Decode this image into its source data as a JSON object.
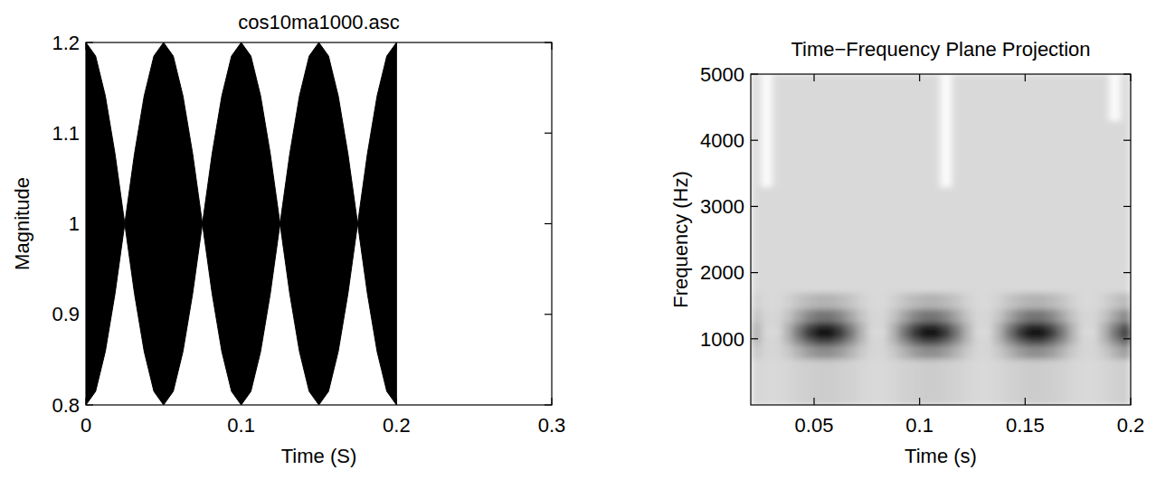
{
  "chart_data": [
    {
      "type": "area",
      "title": "cos10ma1000.asc",
      "x_label": "Time (S)",
      "y_label": "Magnitude",
      "x": [
        0,
        0.00625,
        0.0125,
        0.01875,
        0.025,
        0.03125,
        0.0375,
        0.04375,
        0.05,
        0.05625,
        0.0625,
        0.06875,
        0.075,
        0.08125,
        0.0875,
        0.09375,
        0.1,
        0.10625,
        0.1125,
        0.11875,
        0.125,
        0.13125,
        0.1375,
        0.14375,
        0.15,
        0.15625,
        0.1625,
        0.16875,
        0.175,
        0.18125,
        0.1875,
        0.19375,
        0.2
      ],
      "series": [
        {
          "color": "#000000",
          "values": [
            1.2,
            1.185,
            1.141,
            1.077,
            1,
            1.077,
            1.141,
            1.185,
            1.2,
            1.185,
            1.141,
            1.077,
            1,
            1.077,
            1.141,
            1.185,
            1.2,
            1.185,
            1.141,
            1.077,
            1,
            1.077,
            1.141,
            1.185,
            1.2,
            1.185,
            1.141,
            1.077,
            1,
            1.077,
            1.141,
            1.185,
            1.2
          ]
        },
        {
          "color": "#000000",
          "values": [
            0.8,
            0.815,
            0.859,
            0.923,
            1,
            0.923,
            0.859,
            0.815,
            0.8,
            0.815,
            0.859,
            0.923,
            1,
            0.923,
            0.859,
            0.815,
            0.8,
            0.815,
            0.859,
            0.923,
            1,
            0.923,
            0.859,
            0.815,
            0.8,
            0.815,
            0.859,
            0.923,
            1,
            0.923,
            0.859,
            0.815,
            0.8
          ]
        }
      ],
      "xlim": [
        0,
        0.3
      ],
      "xticks": [
        0,
        0.1,
        0.2,
        0.3
      ],
      "ylim": [
        0.8,
        1.2
      ],
      "yticks": [
        0.8,
        0.9,
        1,
        1.1,
        1.2
      ]
    },
    {
      "type": "heatmap",
      "title": "Time−Frequency Plane Projection",
      "x_label": "Time (s)",
      "y_label": "Frequency (Hz)",
      "x_edges": [
        0.02,
        0.025,
        0.03,
        0.035,
        0.04,
        0.045,
        0.05,
        0.055,
        0.06,
        0.065,
        0.07,
        0.075,
        0.08,
        0.085,
        0.09,
        0.095,
        0.1,
        0.105,
        0.11,
        0.115,
        0.12,
        0.125,
        0.13,
        0.135,
        0.14,
        0.145,
        0.15,
        0.155,
        0.16,
        0.165,
        0.17,
        0.175,
        0.18,
        0.185,
        0.19,
        0.195,
        0.2
      ],
      "y_edges": [
        0,
        700,
        900,
        1000,
        1050,
        1150,
        1250,
        1450,
        1700,
        3300,
        4300,
        5000
      ],
      "cells": [
        [
          0.16,
          0.15,
          0.15,
          0.16,
          0.18,
          0.19,
          0.2,
          0.2,
          0.19,
          0.18,
          0.16,
          0.15,
          0.15,
          0.16,
          0.18,
          0.19,
          0.2,
          0.2,
          0.19,
          0.18,
          0.16,
          0.15,
          0.15,
          0.16,
          0.18,
          0.19,
          0.2,
          0.2,
          0.19,
          0.18,
          0.16,
          0.15,
          0.15,
          0.16,
          0.18,
          0.19
        ],
        [
          0.21,
          0.16,
          0.16,
          0.21,
          0.3,
          0.39,
          0.44,
          0.44,
          0.39,
          0.3,
          0.21,
          0.16,
          0.16,
          0.21,
          0.3,
          0.39,
          0.44,
          0.44,
          0.39,
          0.3,
          0.21,
          0.16,
          0.16,
          0.21,
          0.3,
          0.39,
          0.44,
          0.44,
          0.39,
          0.3,
          0.21,
          0.16,
          0.16,
          0.21,
          0.3,
          0.39
        ],
        [
          0.27,
          0.16,
          0.16,
          0.27,
          0.43,
          0.58,
          0.69,
          0.69,
          0.58,
          0.43,
          0.27,
          0.16,
          0.16,
          0.27,
          0.43,
          0.58,
          0.69,
          0.69,
          0.58,
          0.43,
          0.27,
          0.16,
          0.16,
          0.27,
          0.43,
          0.58,
          0.69,
          0.69,
          0.58,
          0.43,
          0.27,
          0.16,
          0.16,
          0.27,
          0.43,
          0.58
        ],
        [
          0.31,
          0.17,
          0.17,
          0.31,
          0.53,
          0.74,
          0.89,
          0.89,
          0.74,
          0.53,
          0.31,
          0.17,
          0.17,
          0.31,
          0.53,
          0.74,
          0.89,
          0.89,
          0.74,
          0.53,
          0.31,
          0.17,
          0.17,
          0.31,
          0.53,
          0.74,
          0.89,
          0.89,
          0.74,
          0.53,
          0.31,
          0.17,
          0.17,
          0.31,
          0.53,
          0.74
        ],
        [
          0.3,
          0.14,
          0.14,
          0.3,
          0.55,
          0.79,
          0.95,
          0.95,
          0.79,
          0.55,
          0.3,
          0.14,
          0.14,
          0.3,
          0.55,
          0.79,
          0.95,
          0.95,
          0.79,
          0.55,
          0.3,
          0.14,
          0.14,
          0.3,
          0.55,
          0.79,
          0.95,
          0.95,
          0.79,
          0.55,
          0.3,
          0.14,
          0.14,
          0.3,
          0.55,
          0.79
        ],
        [
          0.3,
          0.16,
          0.16,
          0.3,
          0.5,
          0.7,
          0.84,
          0.84,
          0.7,
          0.5,
          0.3,
          0.16,
          0.16,
          0.3,
          0.5,
          0.7,
          0.84,
          0.84,
          0.7,
          0.5,
          0.3,
          0.16,
          0.16,
          0.3,
          0.5,
          0.7,
          0.84,
          0.84,
          0.7,
          0.5,
          0.3,
          0.16,
          0.16,
          0.3,
          0.5,
          0.7
        ],
        [
          0.23,
          0.16,
          0.16,
          0.23,
          0.35,
          0.47,
          0.54,
          0.54,
          0.47,
          0.35,
          0.23,
          0.16,
          0.16,
          0.23,
          0.35,
          0.47,
          0.54,
          0.54,
          0.47,
          0.35,
          0.23,
          0.16,
          0.16,
          0.23,
          0.35,
          0.47,
          0.54,
          0.54,
          0.47,
          0.35,
          0.23,
          0.16,
          0.16,
          0.23,
          0.35,
          0.47
        ],
        [
          0.18,
          0.15,
          0.15,
          0.18,
          0.23,
          0.27,
          0.3,
          0.3,
          0.27,
          0.23,
          0.18,
          0.15,
          0.15,
          0.18,
          0.23,
          0.27,
          0.3,
          0.3,
          0.27,
          0.23,
          0.18,
          0.15,
          0.15,
          0.18,
          0.23,
          0.27,
          0.3,
          0.3,
          0.27,
          0.23,
          0.18,
          0.15,
          0.15,
          0.18,
          0.23,
          0.27
        ],
        [
          0.15,
          0.15,
          0.15,
          0.15,
          0.15,
          0.15,
          0.15,
          0.15,
          0.15,
          0.15,
          0.15,
          0.15,
          0.15,
          0.15,
          0.15,
          0.15,
          0.15,
          0.15,
          0.15,
          0.15,
          0.15,
          0.15,
          0.15,
          0.15,
          0.15,
          0.15,
          0.15,
          0.15,
          0.15,
          0.15,
          0.15,
          0.15,
          0.15,
          0.15,
          0.15,
          0.15
        ],
        [
          0.15,
          0,
          0.15,
          0.15,
          0.15,
          0.15,
          0.15,
          0.15,
          0.15,
          0.15,
          0.15,
          0.15,
          0.15,
          0.15,
          0.15,
          0.15,
          0.15,
          0.15,
          0,
          0.15,
          0.15,
          0.15,
          0.15,
          0.15,
          0.15,
          0.15,
          0.15,
          0.15,
          0.15,
          0.15,
          0.15,
          0.15,
          0.15,
          0.15,
          0.15,
          0.15
        ],
        [
          0.15,
          0,
          0.15,
          0.15,
          0.15,
          0.15,
          0.15,
          0.15,
          0.15,
          0.15,
          0.15,
          0.15,
          0.15,
          0.15,
          0.15,
          0.15,
          0.15,
          0.15,
          0,
          0.15,
          0.15,
          0.15,
          0.15,
          0.15,
          0.15,
          0.15,
          0.15,
          0.15,
          0.15,
          0.15,
          0.15,
          0.15,
          0.15,
          0.15,
          0,
          0.15
        ]
      ],
      "xlim": [
        0.02,
        0.2
      ],
      "xticks": [
        0.05,
        0.1,
        0.15,
        0.2
      ],
      "ylim": [
        0,
        5000
      ],
      "yticks": [
        1000,
        2000,
        3000,
        4000,
        5000
      ]
    }
  ]
}
